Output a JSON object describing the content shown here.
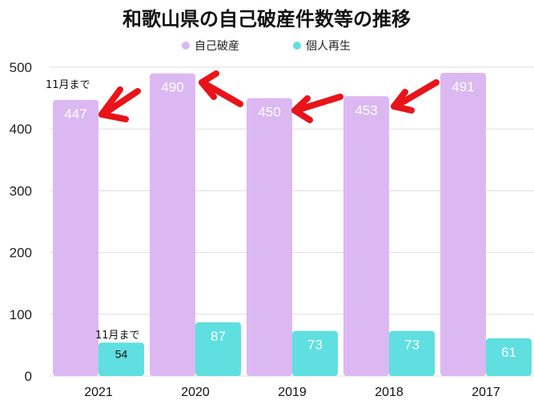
{
  "chart_data": {
    "type": "bar",
    "title": "和歌山県の自己破産件数等の推移",
    "categories": [
      "2021",
      "2020",
      "2019",
      "2018",
      "2017"
    ],
    "series": [
      {
        "name": "自己破産",
        "values": [
          447,
          490,
          450,
          453,
          491
        ],
        "color": "#dcb8f2"
      },
      {
        "name": "個人再生",
        "values": [
          54,
          87,
          73,
          73,
          61
        ],
        "color": "#5fdfe0"
      }
    ],
    "ylim": [
      0,
      500
    ],
    "yticks": [
      "0",
      "100",
      "200",
      "300",
      "400",
      "500"
    ],
    "grid": true,
    "legend_position": "top-center",
    "annotations": {
      "bankruptcy_2021_note": "11月まで",
      "rehab_2021_note": "11月まで",
      "arrows": "red"
    }
  }
}
